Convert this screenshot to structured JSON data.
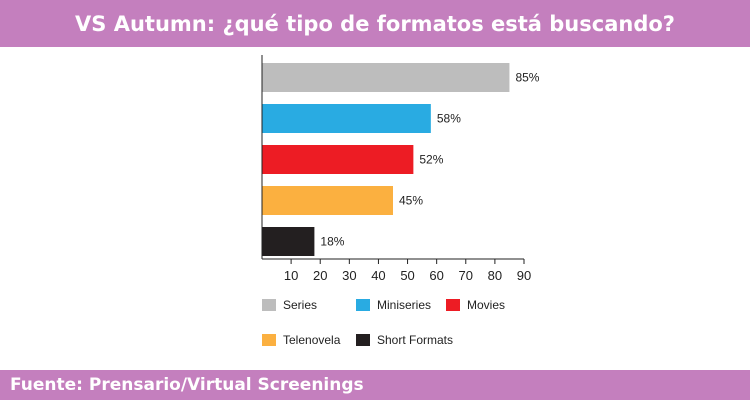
{
  "header": {
    "title": "VS Autumn: ¿qué tipo de formatos está buscando?"
  },
  "footer": {
    "source": "Fuente: Prensario/Virtual Screenings"
  },
  "colors": {
    "band": "#c47fbe"
  },
  "chart_data": {
    "type": "bar",
    "orientation": "horizontal",
    "title": "VS Autumn: ¿qué tipo de formatos está buscando?",
    "categories": [
      "Series",
      "Miniseries",
      "Movies",
      "Telenovela",
      "Short Formats"
    ],
    "values": [
      85,
      58,
      52,
      45,
      18
    ],
    "value_labels": [
      "85%",
      "58%",
      "52%",
      "45%",
      "18%"
    ],
    "colors": [
      "#bdbdbd",
      "#29abe2",
      "#ed1c24",
      "#fbb040",
      "#231f20"
    ],
    "xlim": [
      0,
      90
    ],
    "xticks": [
      10,
      20,
      30,
      40,
      50,
      60,
      70,
      80,
      90
    ],
    "grid": false,
    "legend": "bottom"
  }
}
